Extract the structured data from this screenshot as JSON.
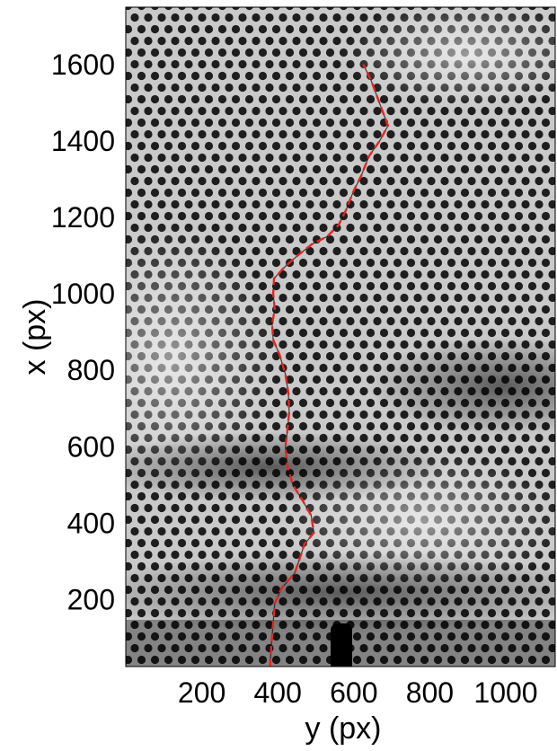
{
  "chart_data": {
    "type": "line",
    "title": "",
    "xlabel": "y (px)",
    "ylabel": "x (px)",
    "xlim": [
      0,
      1130
    ],
    "ylim": [
      1750,
      25
    ],
    "x_ticks": [
      200,
      400,
      600,
      800,
      1000
    ],
    "y_ticks": [
      200,
      400,
      600,
      800,
      1000,
      1200,
      1400,
      1600
    ],
    "x_tick_labels": [
      "200",
      "400",
      "600",
      "800",
      "1000"
    ],
    "y_tick_labels": [
      "200",
      "400",
      "600",
      "800",
      "1000",
      "1200",
      "1400",
      "1600"
    ],
    "background": "grayscale micrograph of a hexagonal dot lattice with a crack",
    "grid": false,
    "legend": "none",
    "series": [
      {
        "style": "dashed",
        "color": "#e8231f",
        "points": [
          [
            380,
            25
          ],
          [
            383,
            80
          ],
          [
            388,
            140
          ],
          [
            392,
            190
          ],
          [
            410,
            230
          ],
          [
            445,
            270
          ],
          [
            462,
            320
          ],
          [
            470,
            345
          ],
          [
            495,
            375
          ],
          [
            488,
            420
          ],
          [
            465,
            460
          ],
          [
            440,
            500
          ],
          [
            425,
            550
          ],
          [
            420,
            600
          ],
          [
            425,
            640
          ],
          [
            430,
            690
          ],
          [
            428,
            740
          ],
          [
            420,
            790
          ],
          [
            405,
            840
          ],
          [
            388,
            880
          ],
          [
            385,
            920
          ],
          [
            392,
            960
          ],
          [
            388,
            1000
          ],
          [
            390,
            1040
          ],
          [
            418,
            1070
          ],
          [
            452,
            1100
          ],
          [
            490,
            1130
          ],
          [
            530,
            1150
          ],
          [
            560,
            1180
          ],
          [
            580,
            1220
          ],
          [
            600,
            1270
          ],
          [
            620,
            1310
          ],
          [
            640,
            1360
          ],
          [
            668,
            1400
          ],
          [
            690,
            1440
          ],
          [
            675,
            1480
          ],
          [
            660,
            1520
          ],
          [
            645,
            1560
          ],
          [
            625,
            1600
          ]
        ]
      }
    ]
  }
}
